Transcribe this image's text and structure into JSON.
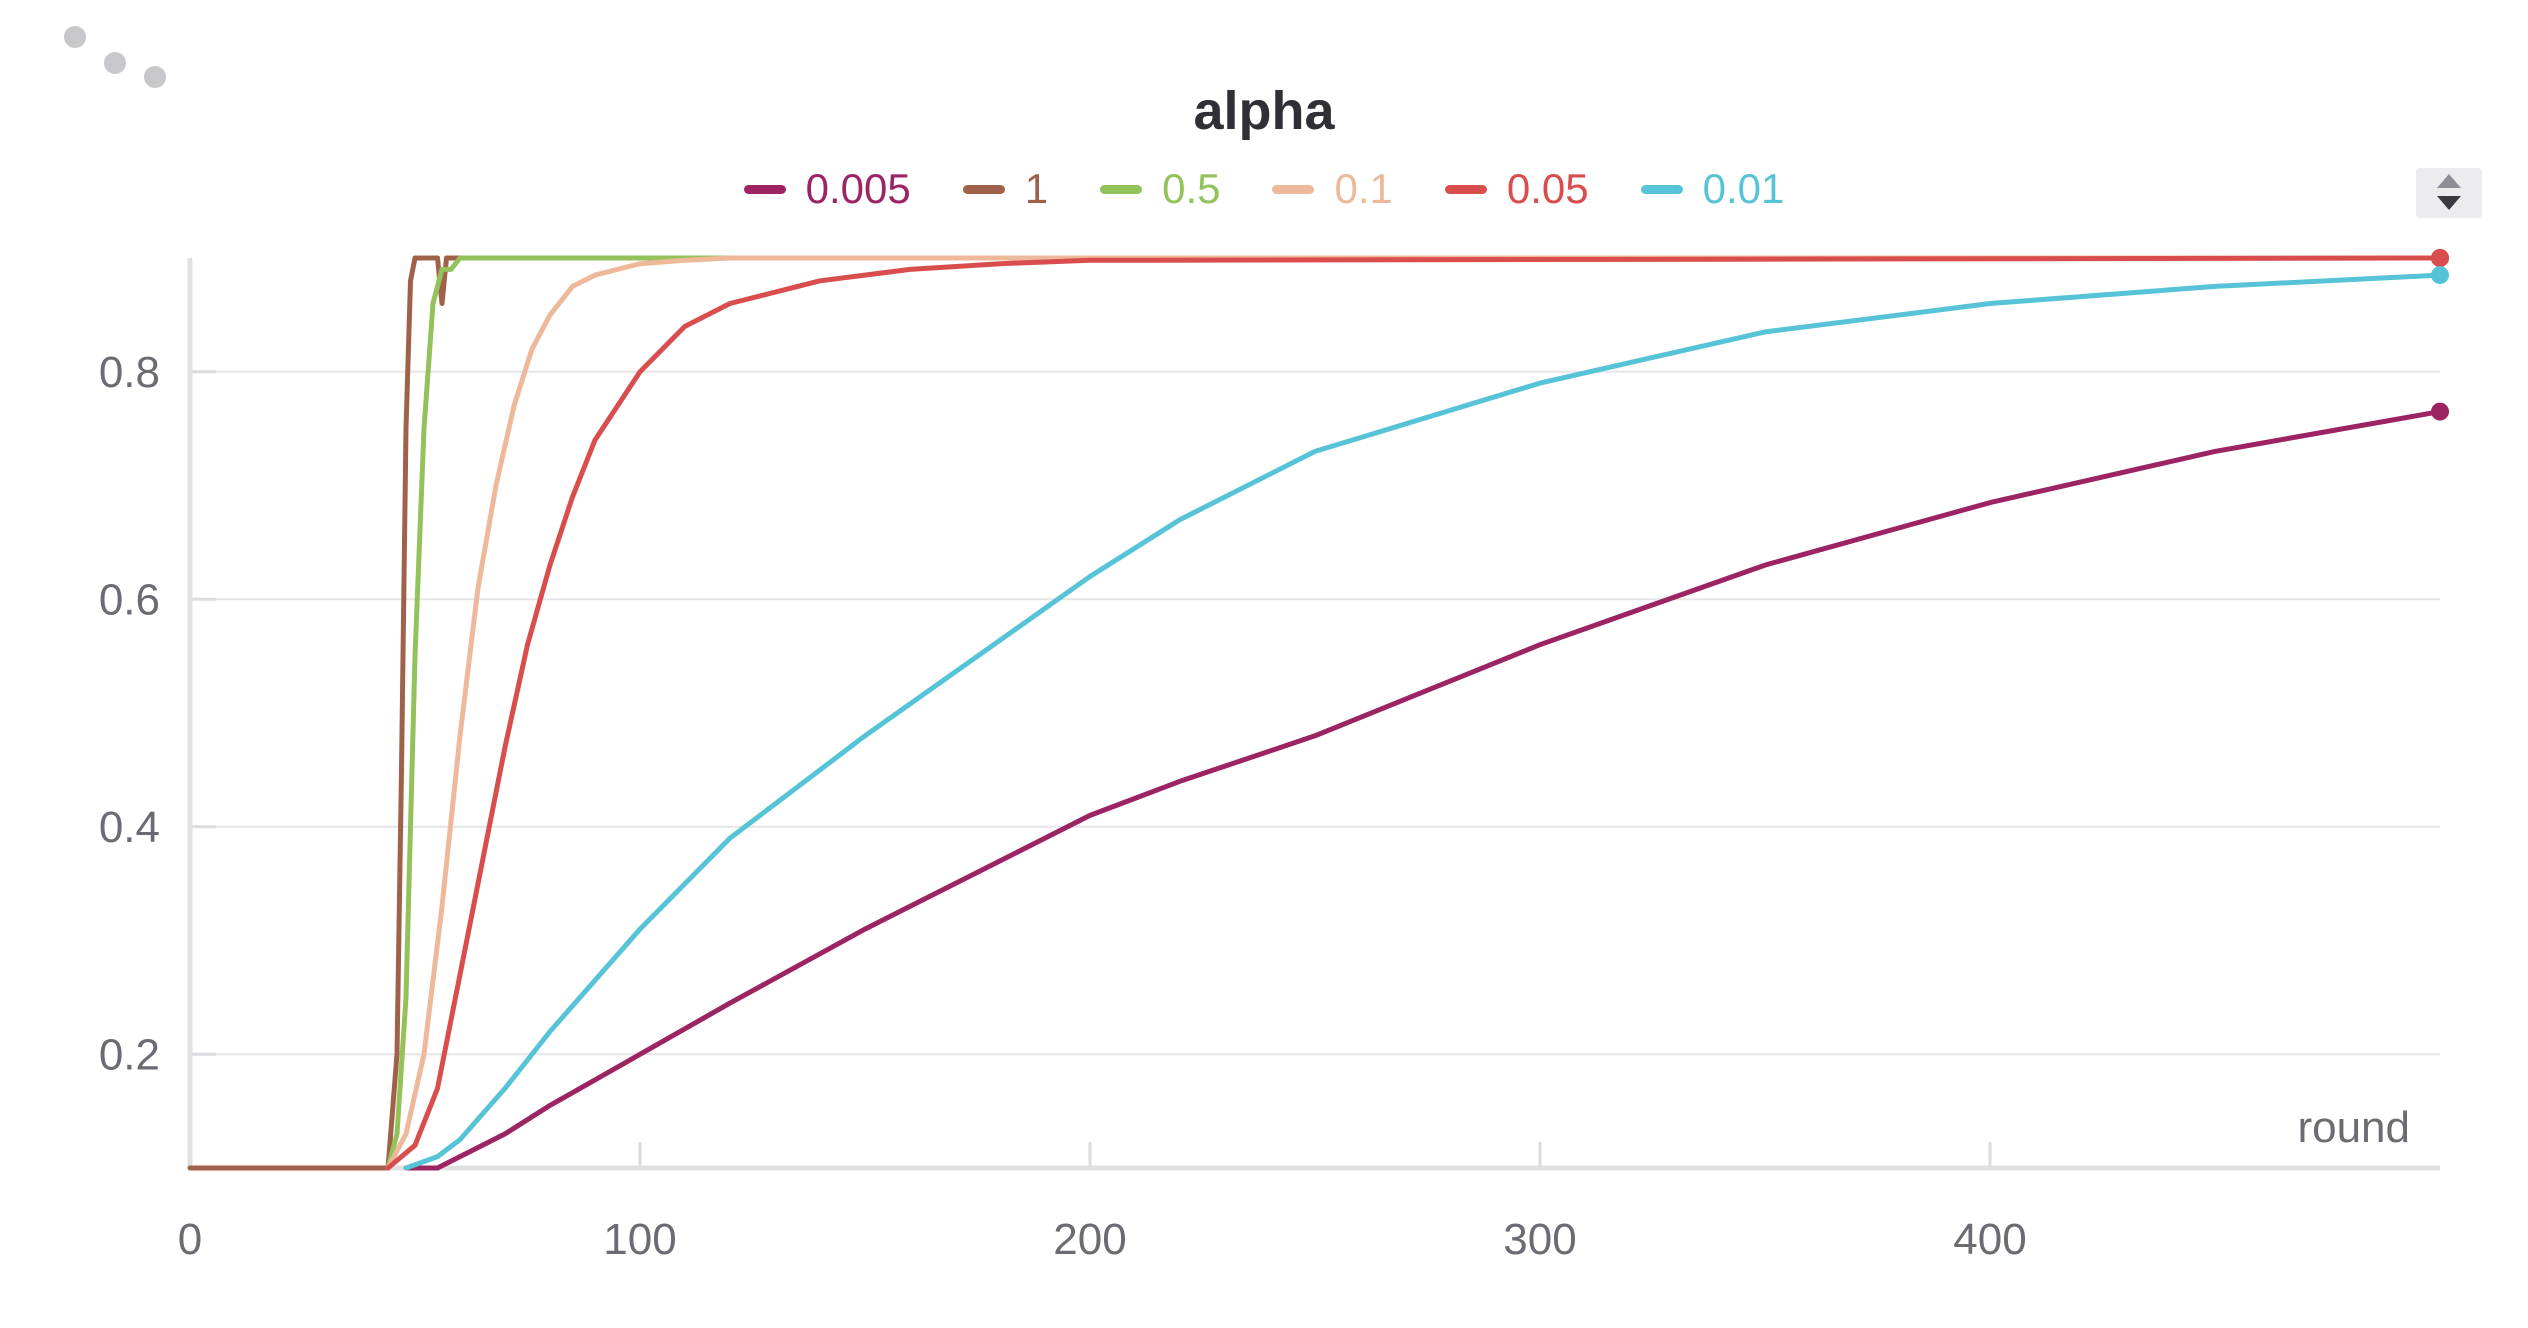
{
  "chart_data": {
    "type": "line",
    "title": "alpha",
    "xlabel": "round",
    "ylabel": "",
    "xlim": [
      0,
      500
    ],
    "ylim": [
      0.1,
      0.9
    ],
    "xticks": [
      "0",
      "100",
      "200",
      "300",
      "400"
    ],
    "yticks": [
      "0.2",
      "0.4",
      "0.6",
      "0.8"
    ],
    "grid": true,
    "legend_position": "top-center",
    "series": [
      {
        "name": "0.005",
        "color": "#9c2463",
        "x": [
          48,
          55,
          60,
          70,
          80,
          100,
          120,
          150,
          200,
          220,
          250,
          300,
          350,
          400,
          450,
          500
        ],
        "y": [
          0.1,
          0.1,
          0.11,
          0.13,
          0.155,
          0.2,
          0.245,
          0.31,
          0.41,
          0.44,
          0.48,
          0.56,
          0.63,
          0.685,
          0.73,
          0.765
        ]
      },
      {
        "name": "1",
        "color": "#a0614a",
        "x": [
          0,
          44,
          46,
          47,
          48,
          49,
          50,
          53,
          55,
          56,
          57,
          58,
          500
        ],
        "y": [
          0.1,
          0.1,
          0.2,
          0.45,
          0.75,
          0.88,
          0.9,
          0.9,
          0.9,
          0.86,
          0.9,
          0.9,
          0.9
        ]
      },
      {
        "name": "0.5",
        "color": "#93c25a",
        "x": [
          44,
          46,
          48,
          49,
          50,
          52,
          54,
          56,
          58,
          60,
          62,
          65,
          500
        ],
        "y": [
          0.1,
          0.13,
          0.25,
          0.4,
          0.55,
          0.75,
          0.86,
          0.89,
          0.89,
          0.9,
          0.9,
          0.9,
          0.9
        ]
      },
      {
        "name": "0.1",
        "color": "#eeb89a",
        "x": [
          44,
          48,
          52,
          56,
          60,
          64,
          68,
          72,
          76,
          80,
          85,
          90,
          100,
          110,
          120,
          500
        ],
        "y": [
          0.1,
          0.13,
          0.2,
          0.33,
          0.48,
          0.61,
          0.7,
          0.77,
          0.82,
          0.85,
          0.875,
          0.885,
          0.895,
          0.898,
          0.9,
          0.9
        ]
      },
      {
        "name": "0.05",
        "color": "#d94d4d",
        "x": [
          44,
          50,
          55,
          60,
          65,
          70,
          75,
          80,
          85,
          90,
          100,
          110,
          120,
          140,
          160,
          180,
          200,
          500
        ],
        "y": [
          0.1,
          0.12,
          0.17,
          0.27,
          0.37,
          0.47,
          0.56,
          0.63,
          0.69,
          0.74,
          0.8,
          0.84,
          0.86,
          0.88,
          0.89,
          0.895,
          0.898,
          0.9
        ]
      },
      {
        "name": "0.01",
        "color": "#56c3d6",
        "x": [
          48,
          55,
          60,
          70,
          80,
          100,
          120,
          150,
          200,
          220,
          250,
          300,
          350,
          400,
          450,
          500
        ],
        "y": [
          0.1,
          0.11,
          0.125,
          0.17,
          0.22,
          0.31,
          0.39,
          0.48,
          0.62,
          0.67,
          0.73,
          0.79,
          0.835,
          0.86,
          0.875,
          0.885
        ]
      }
    ]
  },
  "ui": {
    "sort_icon": "sort-arrows-icon",
    "menu_icon": "drag-handle-dots-icon",
    "text_color": "#6b6b73",
    "grid_color": "#e6e6e9"
  }
}
